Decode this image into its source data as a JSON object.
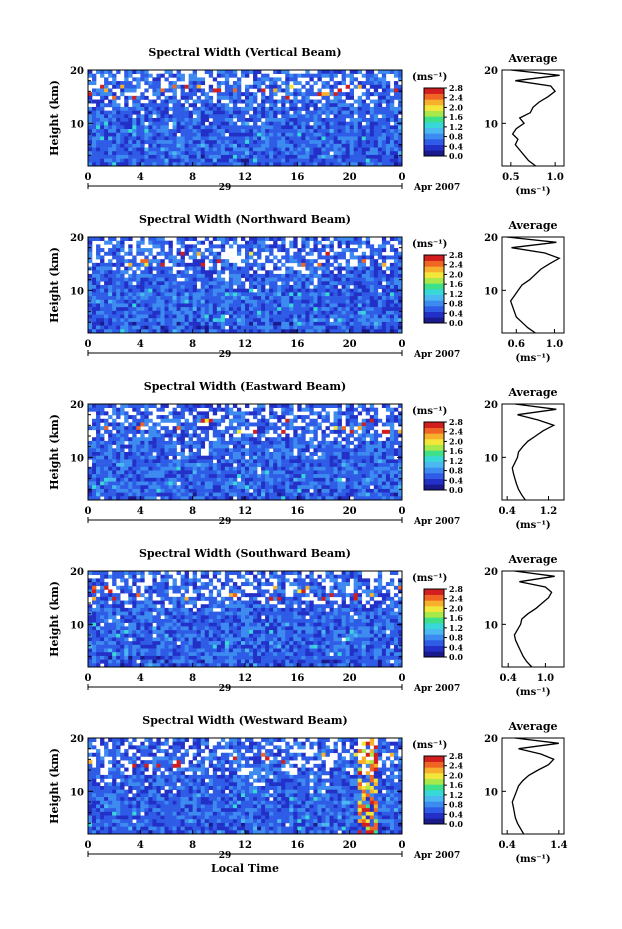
{
  "figure": {
    "common_xlabel": "Local Time",
    "date_label": "Apr 2007",
    "day_label": "29",
    "colorbar_unit": "(ms⁻¹)",
    "colorbar_ticks": [
      "0.0",
      "0.4",
      "0.8",
      "1.2",
      "1.6",
      "2.0",
      "2.4",
      "2.8"
    ],
    "colors": {
      "scale": [
        "#1a1a8c",
        "#2330c8",
        "#2f5ce6",
        "#3d8bf0",
        "#4cb8f2",
        "#39d8d8",
        "#3fe08a",
        "#a9e84a",
        "#f2e63a",
        "#f7b02c",
        "#f06424",
        "#d21e1e"
      ],
      "axis": "#000000",
      "missing": "#ffffff"
    }
  },
  "chart_data": [
    {
      "type": "heatmap",
      "title": "Spectral Width (Vertical Beam)",
      "ylabel": "Height (km)",
      "x_ticks": [
        "0",
        "4",
        "8",
        "12",
        "16",
        "20",
        "0"
      ],
      "y_ticks": [
        "10",
        "20"
      ],
      "xlim": [
        0,
        24
      ],
      "ylim": [
        2,
        20
      ],
      "zlim": [
        0.0,
        2.8
      ],
      "grid": false,
      "average_profile": {
        "title": "Average",
        "xlabel": "(ms⁻¹)",
        "x_ticks": [
          "0.5",
          "1.0"
        ],
        "y_ticks": [
          "10",
          "20"
        ],
        "xlim": [
          0.4,
          1.1
        ],
        "height": [
          2,
          3,
          4,
          5,
          6,
          7,
          8,
          9,
          10,
          11,
          12,
          13,
          14,
          15,
          16,
          17,
          18,
          19,
          20
        ],
        "values": [
          0.78,
          0.7,
          0.65,
          0.6,
          0.55,
          0.58,
          0.52,
          0.56,
          0.65,
          0.6,
          0.72,
          0.75,
          0.82,
          0.92,
          1.0,
          0.95,
          0.55,
          1.05,
          0.5
        ]
      }
    },
    {
      "type": "heatmap",
      "title": "Spectral Width (Northward Beam)",
      "ylabel": "Height (km)",
      "x_ticks": [
        "0",
        "4",
        "8",
        "12",
        "16",
        "20",
        "0"
      ],
      "y_ticks": [
        "10",
        "20"
      ],
      "xlim": [
        0,
        24
      ],
      "ylim": [
        2,
        20
      ],
      "zlim": [
        0.0,
        2.8
      ],
      "grid": false,
      "average_profile": {
        "title": "Average",
        "xlabel": "(ms⁻¹)",
        "x_ticks": [
          "0.6",
          "1.0"
        ],
        "y_ticks": [
          "10",
          "20"
        ],
        "xlim": [
          0.45,
          1.1
        ],
        "height": [
          2,
          3,
          4,
          5,
          6,
          7,
          8,
          9,
          10,
          11,
          12,
          13,
          14,
          15,
          16,
          17,
          18,
          19,
          20
        ],
        "values": [
          0.8,
          0.72,
          0.66,
          0.6,
          0.58,
          0.56,
          0.54,
          0.58,
          0.62,
          0.66,
          0.74,
          0.8,
          0.86,
          0.95,
          1.05,
          0.9,
          0.55,
          1.02,
          0.5
        ]
      }
    },
    {
      "type": "heatmap",
      "title": "Spectral Width (Eastward Beam)",
      "ylabel": "Height (km)",
      "x_ticks": [
        "0",
        "4",
        "8",
        "12",
        "16",
        "20",
        "0"
      ],
      "y_ticks": [
        "10",
        "20"
      ],
      "xlim": [
        0,
        24
      ],
      "ylim": [
        2,
        20
      ],
      "zlim": [
        0.0,
        2.8
      ],
      "grid": false,
      "average_profile": {
        "title": "Average",
        "xlabel": "(ms⁻¹)",
        "x_ticks": [
          "0.4",
          "1.2"
        ],
        "y_ticks": [
          "10",
          "20"
        ],
        "xlim": [
          0.3,
          1.5
        ],
        "height": [
          2,
          3,
          4,
          5,
          6,
          7,
          8,
          9,
          10,
          11,
          12,
          13,
          14,
          15,
          16,
          17,
          18,
          19,
          20
        ],
        "values": [
          0.75,
          0.68,
          0.62,
          0.58,
          0.55,
          0.52,
          0.5,
          0.55,
          0.6,
          0.62,
          0.7,
          0.8,
          0.95,
          1.1,
          1.3,
          1.0,
          0.6,
          1.35,
          0.55
        ]
      }
    },
    {
      "type": "heatmap",
      "title": "Spectral Width (Southward Beam)",
      "ylabel": "Height (km)",
      "x_ticks": [
        "0",
        "4",
        "8",
        "12",
        "16",
        "20",
        "0"
      ],
      "y_ticks": [
        "10",
        "20"
      ],
      "xlim": [
        0,
        24
      ],
      "ylim": [
        2,
        20
      ],
      "zlim": [
        0.0,
        2.8
      ],
      "grid": false,
      "average_profile": {
        "title": "Average",
        "xlabel": "(ms⁻¹)",
        "x_ticks": [
          "0.4",
          "1.0"
        ],
        "y_ticks": [
          "10",
          "20"
        ],
        "xlim": [
          0.3,
          1.3
        ],
        "height": [
          2,
          3,
          4,
          5,
          6,
          7,
          8,
          9,
          10,
          11,
          12,
          13,
          14,
          15,
          16,
          17,
          18,
          19,
          20
        ],
        "values": [
          0.78,
          0.7,
          0.64,
          0.6,
          0.56,
          0.52,
          0.5,
          0.55,
          0.6,
          0.62,
          0.72,
          0.85,
          0.95,
          1.05,
          1.1,
          1.0,
          0.58,
          1.15,
          0.5
        ]
      }
    },
    {
      "type": "heatmap",
      "title": "Spectral Width (Westward Beam)",
      "ylabel": "Height (km)",
      "x_ticks": [
        "0",
        "4",
        "8",
        "12",
        "16",
        "20",
        "0"
      ],
      "y_ticks": [
        "10",
        "20"
      ],
      "xlim": [
        0,
        24
      ],
      "ylim": [
        2,
        20
      ],
      "zlim": [
        0.0,
        2.8
      ],
      "grid": false,
      "average_profile": {
        "title": "Average",
        "xlabel": "(ms⁻¹)",
        "x_ticks": [
          "0.4",
          "1.4"
        ],
        "y_ticks": [
          "10",
          "20"
        ],
        "xlim": [
          0.3,
          1.5
        ],
        "height": [
          2,
          3,
          4,
          5,
          6,
          7,
          8,
          9,
          10,
          11,
          12,
          13,
          14,
          15,
          16,
          17,
          18,
          19,
          20
        ],
        "values": [
          0.72,
          0.66,
          0.6,
          0.56,
          0.54,
          0.52,
          0.5,
          0.54,
          0.58,
          0.62,
          0.7,
          0.82,
          1.0,
          1.2,
          1.3,
          1.05,
          0.62,
          1.4,
          0.55
        ]
      }
    }
  ]
}
